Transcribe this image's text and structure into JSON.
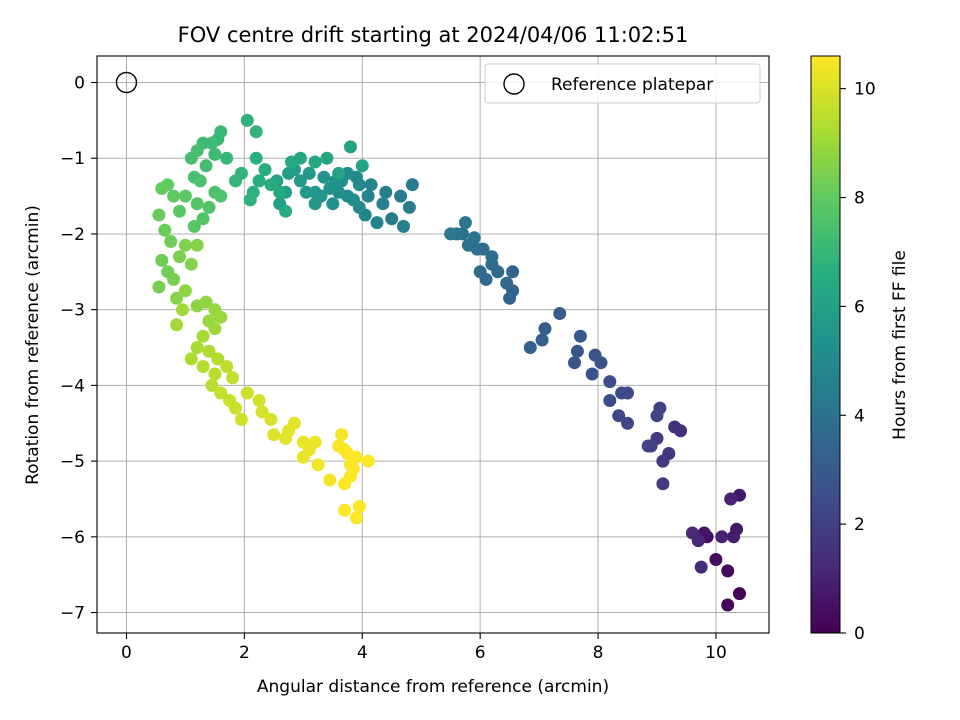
{
  "chart_data": {
    "type": "scatter",
    "title": "FOV centre drift starting at 2024/04/06 11:02:51",
    "xlabel": "Angular distance from reference (arcmin)",
    "ylabel": "Rotation from reference (arcmin)",
    "colorbar_label": "Hours from first FF file",
    "xlim": [
      -0.5,
      10.9
    ],
    "ylim": [
      -7.27,
      0.35
    ],
    "clim": [
      0,
      10.6
    ],
    "xticks": [
      0,
      2,
      4,
      6,
      8,
      10
    ],
    "yticks": [
      0,
      -1,
      -2,
      -3,
      -4,
      -5,
      -6,
      -7
    ],
    "cticks": [
      0,
      2,
      4,
      6,
      8,
      10
    ],
    "grid": true,
    "colormap": "viridis",
    "legend": {
      "placement": "top-right",
      "entries": [
        "Reference platepar"
      ]
    },
    "reference": {
      "x": 0,
      "y": 0
    },
    "points": [
      [
        10.4,
        -6.75,
        0.05
      ],
      [
        10.2,
        -6.9,
        0.15
      ],
      [
        10.2,
        -6.45,
        0.25
      ],
      [
        10.0,
        -6.3,
        0.35
      ],
      [
        9.85,
        -6.0,
        0.45
      ],
      [
        9.8,
        -5.95,
        0.55
      ],
      [
        10.4,
        -5.45,
        0.65
      ],
      [
        10.35,
        -5.9,
        0.75
      ],
      [
        10.3,
        -6.0,
        0.85
      ],
      [
        10.25,
        -5.5,
        0.95
      ],
      [
        10.1,
        -6.0,
        1.05
      ],
      [
        9.7,
        -6.05,
        1.15
      ],
      [
        9.6,
        -5.95,
        1.25
      ],
      [
        9.75,
        -6.4,
        1.3
      ],
      [
        9.4,
        -4.6,
        1.4
      ],
      [
        9.3,
        -4.55,
        1.5
      ],
      [
        9.2,
        -4.9,
        1.6
      ],
      [
        9.1,
        -5.0,
        1.7
      ],
      [
        9.1,
        -5.3,
        1.8
      ],
      [
        9.0,
        -4.7,
        1.9
      ],
      [
        8.9,
        -4.8,
        2.0
      ],
      [
        9.05,
        -4.3,
        2.05
      ],
      [
        9.0,
        -4.4,
        2.1
      ],
      [
        8.85,
        -4.8,
        2.15
      ],
      [
        8.5,
        -4.5,
        2.25
      ],
      [
        8.35,
        -4.4,
        2.3
      ],
      [
        8.5,
        -4.1,
        2.35
      ],
      [
        8.4,
        -4.1,
        2.45
      ],
      [
        8.2,
        -4.2,
        2.5
      ],
      [
        8.2,
        -3.95,
        2.55
      ],
      [
        8.05,
        -3.7,
        2.65
      ],
      [
        7.9,
        -3.85,
        2.7
      ],
      [
        7.95,
        -3.6,
        2.75
      ],
      [
        7.6,
        -3.7,
        2.8
      ],
      [
        7.65,
        -3.55,
        2.9
      ],
      [
        7.7,
        -3.35,
        3.0
      ],
      [
        7.35,
        -3.05,
        3.1
      ],
      [
        7.1,
        -3.25,
        3.15
      ],
      [
        7.05,
        -3.4,
        3.2
      ],
      [
        6.85,
        -3.5,
        3.25
      ],
      [
        6.55,
        -2.75,
        3.35
      ],
      [
        6.5,
        -2.85,
        3.4
      ],
      [
        6.55,
        -2.5,
        3.45
      ],
      [
        6.45,
        -2.65,
        3.5
      ],
      [
        6.3,
        -2.5,
        3.55
      ],
      [
        6.2,
        -2.4,
        3.6
      ],
      [
        6.1,
        -2.6,
        3.65
      ],
      [
        6.0,
        -2.5,
        3.7
      ],
      [
        6.05,
        -2.2,
        3.75
      ],
      [
        5.95,
        -2.2,
        3.8
      ],
      [
        6.2,
        -2.3,
        3.85
      ],
      [
        5.8,
        -2.15,
        3.9
      ],
      [
        5.7,
        -2.0,
        3.95
      ],
      [
        5.6,
        -2.0,
        4.0
      ],
      [
        5.9,
        -2.05,
        4.05
      ],
      [
        5.75,
        -1.85,
        4.1
      ],
      [
        5.5,
        -2.0,
        4.2
      ],
      [
        4.85,
        -1.35,
        4.3
      ],
      [
        4.8,
        -1.65,
        4.35
      ],
      [
        4.65,
        -1.5,
        4.4
      ],
      [
        4.5,
        -1.8,
        4.45
      ],
      [
        4.7,
        -1.9,
        4.5
      ],
      [
        4.4,
        -1.45,
        4.55
      ],
      [
        4.35,
        -1.6,
        4.6
      ],
      [
        4.25,
        -1.85,
        4.65
      ],
      [
        4.1,
        -1.5,
        4.7
      ],
      [
        4.15,
        -1.35,
        4.75
      ],
      [
        4.05,
        -1.75,
        4.8
      ],
      [
        3.95,
        -1.65,
        4.9
      ],
      [
        3.95,
        -1.35,
        4.95
      ],
      [
        3.9,
        -1.25,
        5.0
      ],
      [
        3.85,
        -1.55,
        5.05
      ],
      [
        3.75,
        -1.5,
        5.1
      ],
      [
        3.75,
        -1.2,
        5.15
      ],
      [
        3.65,
        -1.3,
        5.2
      ],
      [
        3.6,
        -1.45,
        5.25
      ],
      [
        3.55,
        -1.3,
        5.3
      ],
      [
        3.5,
        -1.6,
        5.35
      ],
      [
        3.45,
        -1.4,
        5.4
      ],
      [
        3.35,
        -1.25,
        5.45
      ],
      [
        3.3,
        -1.5,
        5.5
      ],
      [
        3.2,
        -1.45,
        5.55
      ],
      [
        3.2,
        -1.6,
        5.6
      ],
      [
        3.1,
        -1.2,
        5.65
      ],
      [
        3.05,
        -1.45,
        5.7
      ],
      [
        2.95,
        -1.3,
        5.75
      ],
      [
        2.85,
        -1.15,
        5.8
      ],
      [
        2.75,
        -1.2,
        5.85
      ],
      [
        2.7,
        -1.45,
        5.9
      ],
      [
        2.6,
        -1.6,
        5.95
      ],
      [
        2.55,
        -1.3,
        6.0
      ],
      [
        3.8,
        -0.85,
        6.05
      ],
      [
        4.0,
        -1.1,
        6.1
      ],
      [
        3.6,
        -1.2,
        6.15
      ],
      [
        3.4,
        -1.0,
        6.2
      ],
      [
        3.2,
        -1.05,
        6.25
      ],
      [
        2.95,
        -1.0,
        6.3
      ],
      [
        2.8,
        -1.05,
        6.35
      ],
      [
        2.7,
        -1.7,
        6.4
      ],
      [
        2.6,
        -1.45,
        6.45
      ],
      [
        2.45,
        -1.35,
        6.5
      ],
      [
        2.35,
        -1.15,
        6.55
      ],
      [
        2.25,
        -1.3,
        6.6
      ],
      [
        2.2,
        -1.0,
        6.65
      ],
      [
        2.15,
        -1.45,
        6.7
      ],
      [
        2.1,
        -1.55,
        6.75
      ],
      [
        2.05,
        -0.5,
        6.8
      ],
      [
        2.2,
        -0.65,
        6.85
      ],
      [
        1.95,
        -1.2,
        6.9
      ],
      [
        1.85,
        -1.3,
        6.95
      ],
      [
        1.7,
        -1.0,
        7.0
      ],
      [
        1.55,
        -0.75,
        7.05
      ],
      [
        1.6,
        -0.65,
        7.1
      ],
      [
        1.5,
        -0.95,
        7.15
      ],
      [
        1.45,
        -0.8,
        7.2
      ],
      [
        1.3,
        -0.8,
        7.25
      ],
      [
        1.35,
        -1.1,
        7.3
      ],
      [
        1.2,
        -0.9,
        7.35
      ],
      [
        1.1,
        -1.0,
        7.4
      ],
      [
        1.15,
        -1.25,
        7.45
      ],
      [
        1.25,
        -1.3,
        7.5
      ],
      [
        1.5,
        -1.45,
        7.55
      ],
      [
        1.6,
        -1.5,
        7.6
      ],
      [
        1.4,
        -1.65,
        7.65
      ],
      [
        1.3,
        -1.8,
        7.7
      ],
      [
        1.2,
        -1.6,
        7.75
      ],
      [
        1.15,
        -1.9,
        7.8
      ],
      [
        1.0,
        -1.5,
        7.85
      ],
      [
        0.9,
        -1.7,
        7.9
      ],
      [
        0.8,
        -1.5,
        7.95
      ],
      [
        0.7,
        -1.35,
        8.0
      ],
      [
        0.6,
        -1.4,
        8.05
      ],
      [
        0.55,
        -1.75,
        8.1
      ],
      [
        0.65,
        -1.95,
        8.15
      ],
      [
        0.75,
        -2.1,
        8.2
      ],
      [
        0.6,
        -2.35,
        8.25
      ],
      [
        0.7,
        -2.5,
        8.3
      ],
      [
        0.55,
        -2.7,
        8.35
      ],
      [
        0.8,
        -2.6,
        8.4
      ],
      [
        0.9,
        -2.3,
        8.45
      ],
      [
        1.0,
        -2.15,
        8.5
      ],
      [
        1.1,
        -2.4,
        8.55
      ],
      [
        1.2,
        -2.15,
        8.6
      ],
      [
        0.85,
        -2.85,
        8.65
      ],
      [
        1.0,
        -2.75,
        8.7
      ],
      [
        1.2,
        -2.95,
        8.75
      ],
      [
        1.35,
        -2.9,
        8.8
      ],
      [
        1.5,
        -3.0,
        8.85
      ],
      [
        1.4,
        -3.15,
        8.9
      ],
      [
        1.6,
        -3.1,
        8.95
      ],
      [
        1.5,
        -3.25,
        9.0
      ],
      [
        0.95,
        -3.0,
        9.05
      ],
      [
        0.85,
        -3.2,
        9.1
      ],
      [
        1.3,
        -3.35,
        9.15
      ],
      [
        1.2,
        -3.5,
        9.2
      ],
      [
        1.1,
        -3.65,
        9.25
      ],
      [
        1.4,
        -3.55,
        9.3
      ],
      [
        1.55,
        -3.65,
        9.35
      ],
      [
        1.3,
        -3.75,
        9.4
      ],
      [
        1.5,
        -3.85,
        9.45
      ],
      [
        1.45,
        -4.0,
        9.5
      ],
      [
        1.7,
        -3.75,
        9.55
      ],
      [
        1.8,
        -3.9,
        9.6
      ],
      [
        1.6,
        -4.1,
        9.65
      ],
      [
        1.75,
        -4.2,
        9.7
      ],
      [
        1.85,
        -4.3,
        9.75
      ],
      [
        2.05,
        -4.1,
        9.8
      ],
      [
        1.95,
        -4.45,
        9.85
      ],
      [
        2.25,
        -4.2,
        9.9
      ],
      [
        2.3,
        -4.35,
        9.95
      ],
      [
        2.45,
        -4.45,
        10.0
      ],
      [
        2.5,
        -4.65,
        10.05
      ],
      [
        2.75,
        -4.6,
        10.1
      ],
      [
        2.7,
        -4.7,
        10.15
      ],
      [
        2.85,
        -4.5,
        10.2
      ],
      [
        3.0,
        -4.75,
        10.25
      ],
      [
        3.0,
        -4.95,
        10.3
      ],
      [
        3.2,
        -4.75,
        10.35
      ],
      [
        3.25,
        -5.05,
        10.4
      ],
      [
        3.45,
        -5.25,
        10.45
      ],
      [
        3.65,
        -4.65,
        10.5
      ],
      [
        3.75,
        -4.9,
        10.52
      ],
      [
        3.8,
        -5.05,
        10.54
      ],
      [
        3.9,
        -4.95,
        10.55
      ],
      [
        3.95,
        -5.6,
        10.56
      ],
      [
        3.9,
        -5.75,
        10.57
      ],
      [
        3.7,
        -5.65,
        10.58
      ],
      [
        3.7,
        -5.3,
        10.58
      ],
      [
        3.8,
        -5.2,
        10.59
      ],
      [
        4.1,
        -5.0,
        10.6
      ],
      [
        3.7,
        -4.85,
        10.6
      ],
      [
        3.85,
        -5.1,
        10.6
      ],
      [
        3.6,
        -4.8,
        10.5
      ],
      [
        3.1,
        -4.85,
        10.3
      ]
    ]
  }
}
